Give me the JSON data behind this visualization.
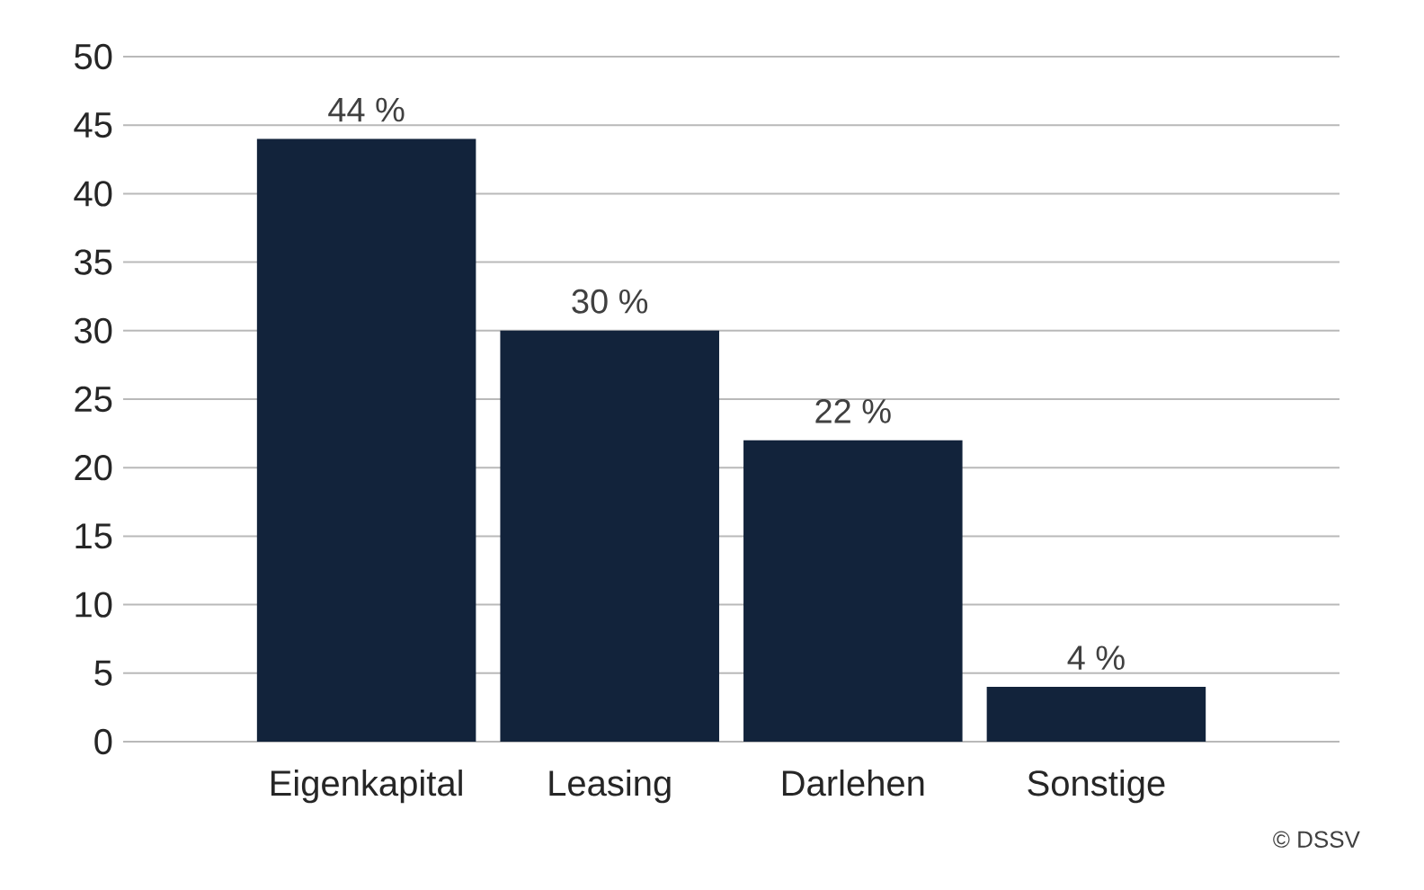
{
  "chart_data": {
    "type": "bar",
    "categories": [
      "Eigenkapital",
      "Leasing",
      "Darlehen",
      "Sonstige"
    ],
    "values": [
      44,
      30,
      22,
      4
    ],
    "color": "#12233b",
    "value_labels": [
      "44 %",
      "30 %",
      "22 %",
      "4 %"
    ],
    "ylim": [
      0,
      50
    ],
    "yticks": [
      0,
      5,
      10,
      15,
      20,
      25,
      30,
      35,
      40,
      45,
      50
    ],
    "grid": "y",
    "annotations": [
      "© DSSV"
    ]
  }
}
